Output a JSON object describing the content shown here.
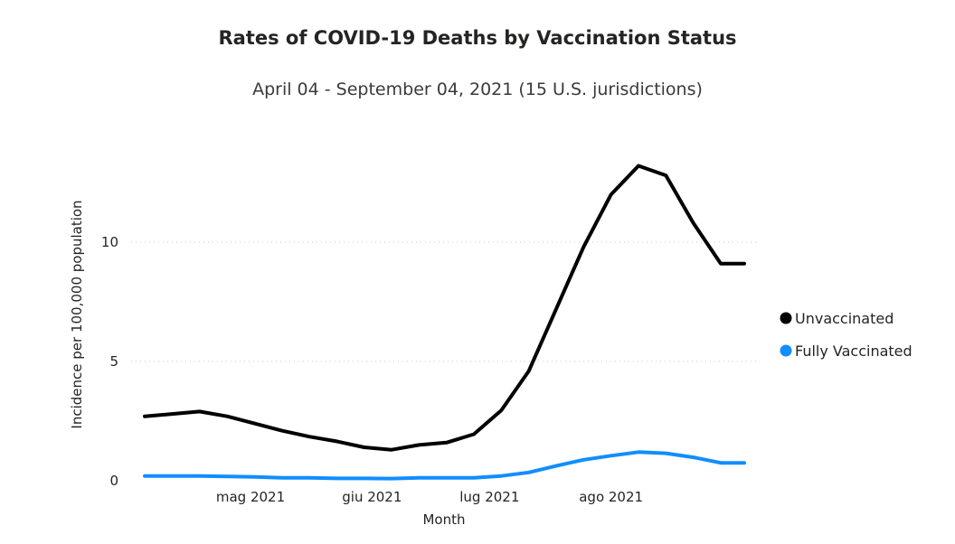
{
  "chart_data": {
    "type": "line",
    "title": "Rates of COVID-19 Deaths by Vaccination Status",
    "subtitle": "April 04 - September 04, 2021 (15 U.S. jurisdictions)",
    "xlabel": "Month",
    "ylabel": "Incidence per 100,000 population",
    "ylim": [
      0,
      14
    ],
    "yticks": [
      0,
      5,
      10
    ],
    "grid": true,
    "legend_position": "right",
    "x": [
      "2021-04-04",
      "2021-04-11",
      "2021-04-18",
      "2021-04-25",
      "2021-05-02",
      "2021-05-09",
      "2021-05-16",
      "2021-05-23",
      "2021-05-30",
      "2021-06-06",
      "2021-06-13",
      "2021-06-20",
      "2021-06-27",
      "2021-07-04",
      "2021-07-11",
      "2021-07-18",
      "2021-07-25",
      "2021-08-01",
      "2021-08-08",
      "2021-08-15",
      "2021-08-22",
      "2021-08-29",
      "2021-09-04"
    ],
    "xticks": [
      {
        "date": "2021-05-01",
        "label": "mag 2021"
      },
      {
        "date": "2021-06-01",
        "label": "giu 2021"
      },
      {
        "date": "2021-07-01",
        "label": "lug 2021"
      },
      {
        "date": "2021-08-01",
        "label": "ago 2021"
      }
    ],
    "series": [
      {
        "name": "Unvaccinated",
        "color": "#000000",
        "values": [
          2.7,
          2.8,
          2.9,
          2.7,
          2.4,
          2.1,
          1.85,
          1.65,
          1.4,
          1.3,
          1.5,
          1.6,
          1.95,
          2.95,
          4.6,
          7.2,
          9.8,
          12.0,
          13.2,
          12.8,
          10.8,
          9.1,
          9.1
        ]
      },
      {
        "name": "Fully Vaccinated",
        "color": "#118DFF",
        "values": [
          0.2,
          0.2,
          0.2,
          0.18,
          0.16,
          0.12,
          0.12,
          0.1,
          0.1,
          0.09,
          0.12,
          0.12,
          0.12,
          0.2,
          0.35,
          0.62,
          0.88,
          1.05,
          1.2,
          1.15,
          0.98,
          0.75,
          0.75
        ]
      }
    ]
  }
}
